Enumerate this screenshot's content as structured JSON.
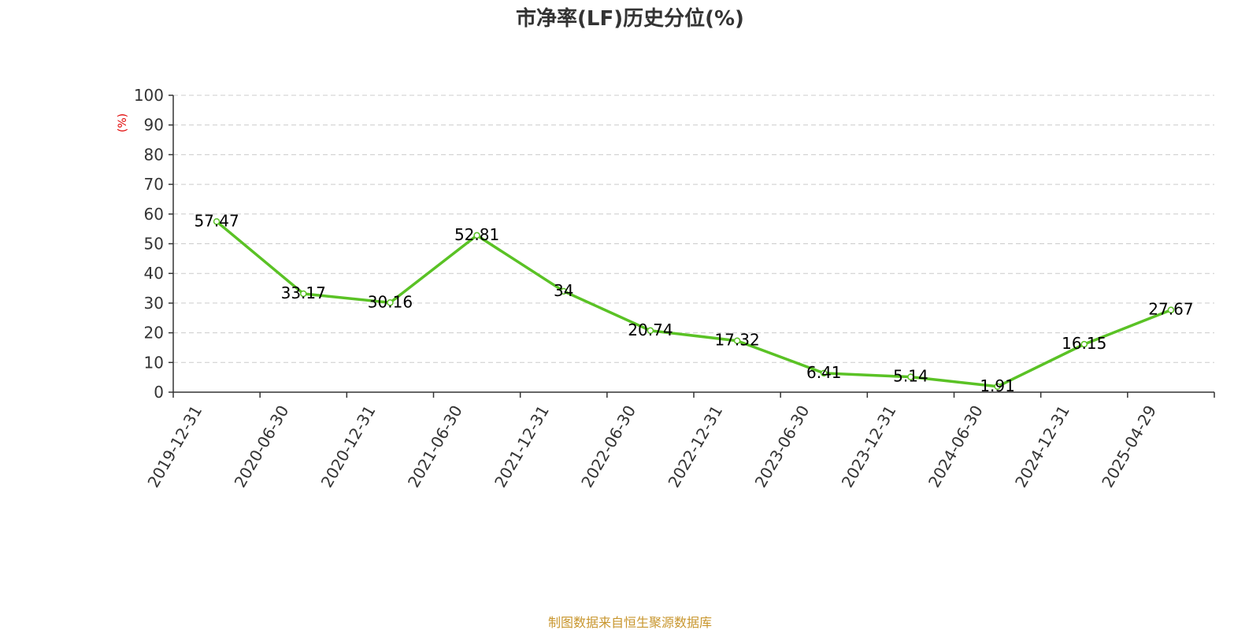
{
  "chart_data": {
    "type": "line",
    "title": "市净率(LF)历史分位(%)",
    "ylabel": "(%)",
    "xlabel": "",
    "ylim": [
      0,
      100
    ],
    "yticks": [
      0,
      10,
      20,
      30,
      40,
      50,
      60,
      70,
      80,
      90,
      100
    ],
    "categories": [
      "2019-12-31",
      "2020-06-30",
      "2020-12-31",
      "2021-06-30",
      "2021-12-31",
      "2022-06-30",
      "2022-12-31",
      "2023-06-30",
      "2023-12-31",
      "2024-06-30",
      "2024-12-31",
      "2025-04-29"
    ],
    "series": [
      {
        "values": [
          57.47,
          33.17,
          30.16,
          52.81,
          34,
          20.74,
          17.32,
          6.41,
          5.14,
          1.91,
          16.15,
          27.67
        ],
        "labels": [
          "57.47",
          "33.17",
          "30.16",
          "52.81",
          "34",
          "20.74",
          "17.32",
          "6.41",
          "5.14",
          "1.91",
          "16.15",
          "27.67"
        ],
        "color": "#5ac225"
      }
    ],
    "grid": true,
    "grid_style": "dashed",
    "ylabel_color": "#e00000"
  },
  "source_note": "制图数据来自恒生聚源数据库",
  "source_color": "#c8962e"
}
